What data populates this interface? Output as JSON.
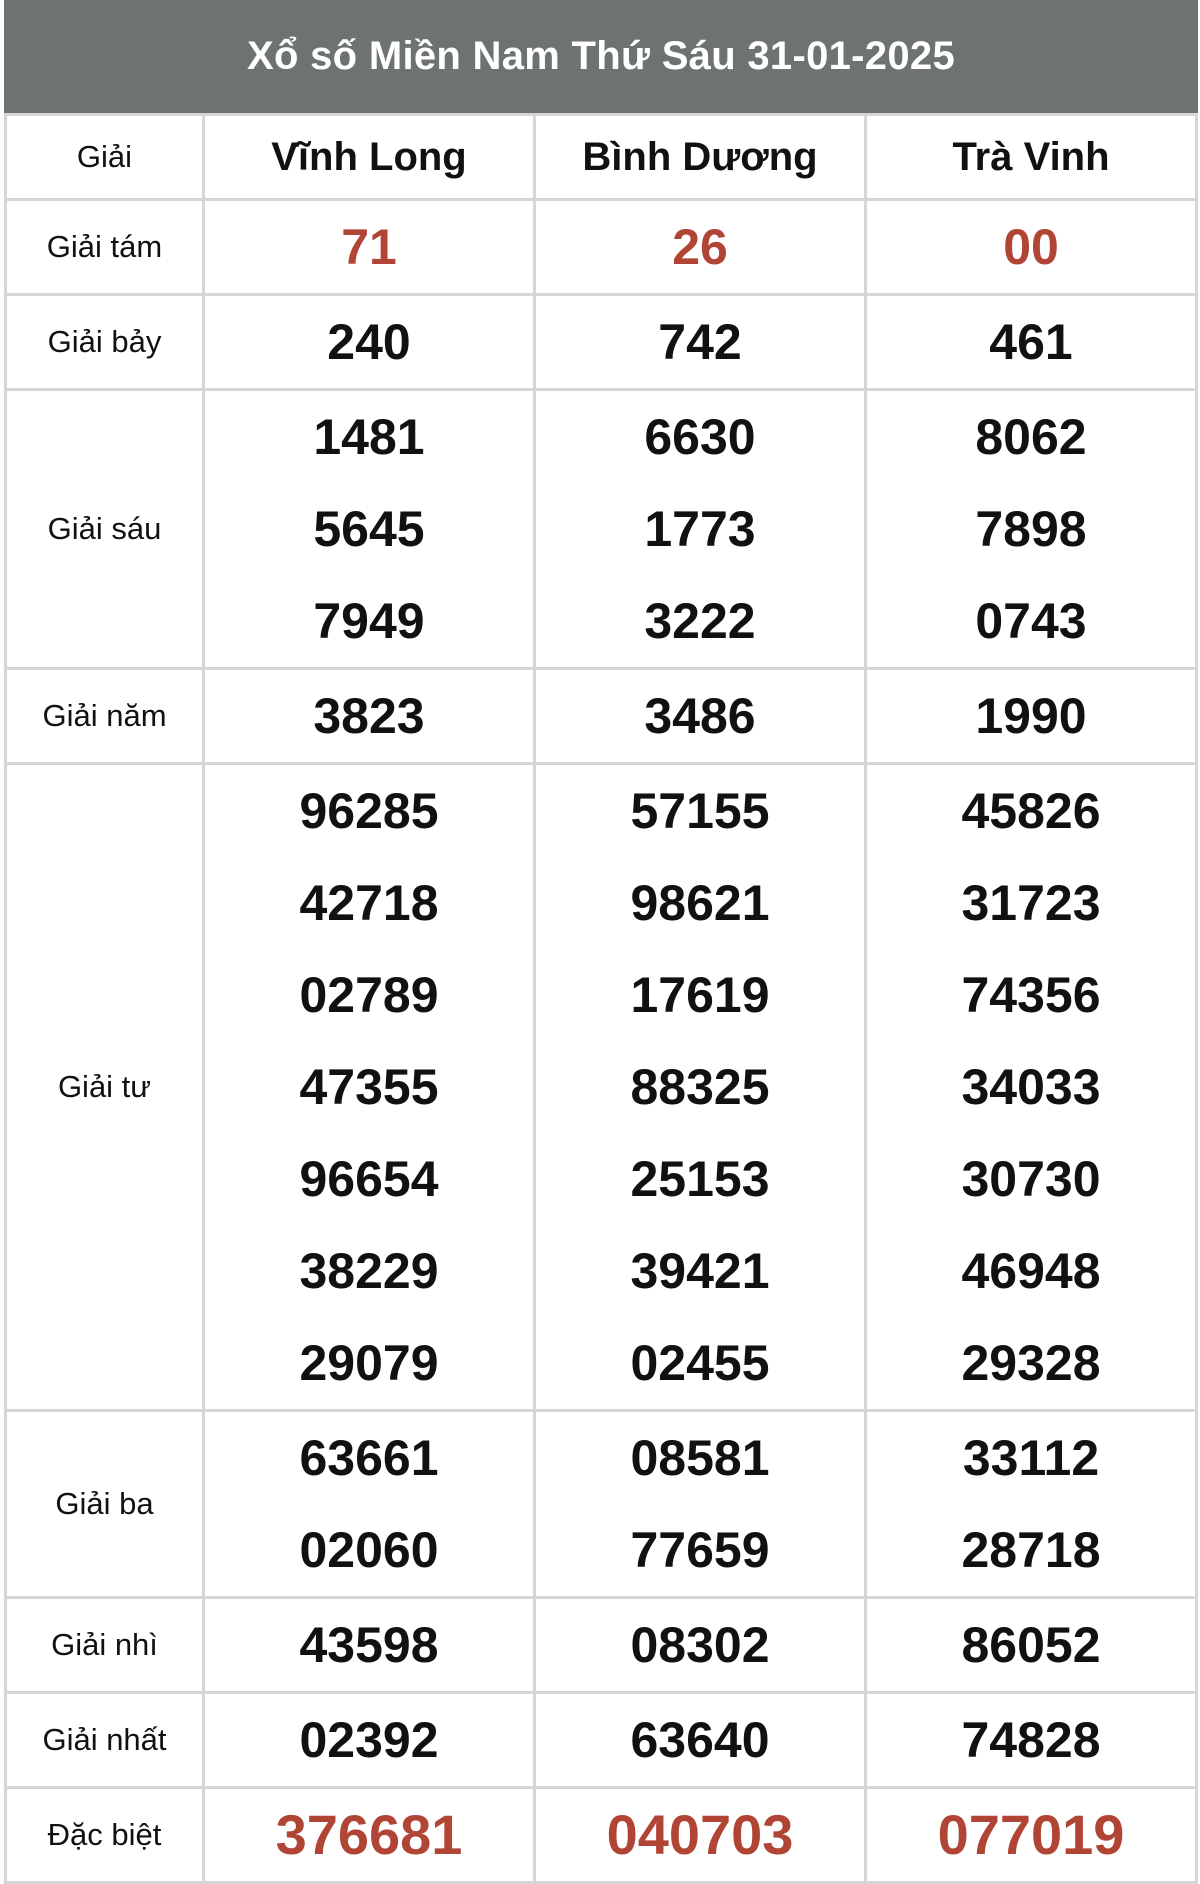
{
  "title": "Xổ số Miền Nam Thứ Sáu 31-01-2025",
  "header": {
    "label": "Giải",
    "provinces": [
      "Vĩnh Long",
      "Bình Dương",
      "Trà Vinh"
    ]
  },
  "colors": {
    "header_bg": "#6d7272",
    "highlight": "#b04535",
    "border": "#d6d6d6"
  },
  "rows": [
    {
      "label": "Giải tám",
      "highlight": true,
      "values": [
        [
          "71"
        ],
        [
          "26"
        ],
        [
          "00"
        ]
      ]
    },
    {
      "label": "Giải bảy",
      "values": [
        [
          "240"
        ],
        [
          "742"
        ],
        [
          "461"
        ]
      ]
    },
    {
      "label": "Giải sáu",
      "values": [
        [
          "1481",
          "5645",
          "7949"
        ],
        [
          "6630",
          "1773",
          "3222"
        ],
        [
          "8062",
          "7898",
          "0743"
        ]
      ]
    },
    {
      "label": "Giải năm",
      "values": [
        [
          "3823"
        ],
        [
          "3486"
        ],
        [
          "1990"
        ]
      ]
    },
    {
      "label": "Giải tư",
      "values": [
        [
          "96285",
          "42718",
          "02789",
          "47355",
          "96654",
          "38229",
          "29079"
        ],
        [
          "57155",
          "98621",
          "17619",
          "88325",
          "25153",
          "39421",
          "02455"
        ],
        [
          "45826",
          "31723",
          "74356",
          "34033",
          "30730",
          "46948",
          "29328"
        ]
      ]
    },
    {
      "label": "Giải ba",
      "values": [
        [
          "63661",
          "02060"
        ],
        [
          "08581",
          "77659"
        ],
        [
          "33112",
          "28718"
        ]
      ]
    },
    {
      "label": "Giải nhì",
      "values": [
        [
          "43598"
        ],
        [
          "08302"
        ],
        [
          "86052"
        ]
      ]
    },
    {
      "label": "Giải nhất",
      "values": [
        [
          "02392"
        ],
        [
          "63640"
        ],
        [
          "74828"
        ]
      ]
    },
    {
      "label": "Đặc biệt",
      "highlight": true,
      "big": true,
      "values": [
        [
          "376681"
        ],
        [
          "040703"
        ],
        [
          "077019"
        ]
      ]
    }
  ]
}
